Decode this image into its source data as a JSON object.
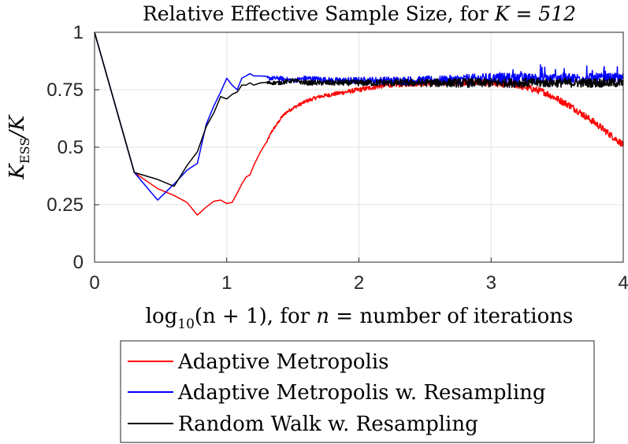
{
  "chart_data": {
    "type": "line",
    "title_prefix": "Relative Effective Sample Size, for ",
    "title_math": "K = 512",
    "xlabel_prefix": "log",
    "xlabel_sub": "10",
    "xlabel_mid": "(n + 1), for ",
    "xlabel_n": "n",
    "xlabel_suffix": " = number of iterations",
    "ylabel_main": "K",
    "ylabel_sub": "ESS",
    "ylabel_rest": "/K",
    "xlim": [
      0,
      4
    ],
    "ylim": [
      0,
      1
    ],
    "xticks": [
      0,
      1,
      2,
      3,
      4
    ],
    "xtick_labels": [
      "0",
      "1",
      "2",
      "3",
      "4"
    ],
    "yticks": [
      0,
      0.25,
      0.5,
      0.75,
      1
    ],
    "ytick_labels": [
      "0",
      "0.25",
      "0.5",
      "0.75",
      "1"
    ],
    "grid": true,
    "legend_position": "below",
    "series": [
      {
        "name": "Adaptive Metropolis",
        "color": "#ff0000",
        "x": [
          0,
          0.301,
          0.477,
          0.602,
          0.699,
          0.778,
          0.845,
          0.903,
          0.954,
          1.0,
          1.041,
          1.079,
          1.114,
          1.146,
          1.176,
          1.204,
          1.255,
          1.301,
          1.342,
          1.38,
          1.415,
          1.447,
          1.5,
          1.6,
          1.7,
          1.8,
          1.9,
          2.0,
          2.2,
          2.5,
          2.8,
          3.0,
          3.2,
          3.4,
          3.6,
          3.8,
          4.0
        ],
        "y": [
          1.0,
          0.39,
          0.32,
          0.29,
          0.26,
          0.205,
          0.24,
          0.265,
          0.27,
          0.255,
          0.26,
          0.3,
          0.34,
          0.37,
          0.38,
          0.42,
          0.48,
          0.52,
          0.57,
          0.6,
          0.63,
          0.65,
          0.67,
          0.7,
          0.72,
          0.73,
          0.74,
          0.75,
          0.77,
          0.78,
          0.785,
          0.78,
          0.77,
          0.74,
          0.68,
          0.6,
          0.51
        ],
        "noise": 0.015
      },
      {
        "name": "Adaptive Metropolis w. Resampling",
        "color": "#0000ff",
        "x": [
          0,
          0.301,
          0.477,
          0.602,
          0.699,
          0.778,
          0.845,
          0.903,
          0.954,
          1.0,
          1.041,
          1.079,
          1.114,
          1.146,
          1.176,
          1.204,
          1.255,
          1.301,
          1.4,
          1.5,
          1.6,
          1.8,
          2.0,
          2.3,
          2.6,
          3.0,
          3.3,
          3.6,
          4.0
        ],
        "y": [
          1.0,
          0.39,
          0.27,
          0.34,
          0.4,
          0.43,
          0.6,
          0.68,
          0.74,
          0.8,
          0.77,
          0.75,
          0.8,
          0.81,
          0.82,
          0.81,
          0.81,
          0.8,
          0.8,
          0.79,
          0.8,
          0.79,
          0.79,
          0.79,
          0.79,
          0.8,
          0.8,
          0.8,
          0.8
        ],
        "noise": 0.022
      },
      {
        "name": "Random Walk w. Resampling",
        "color": "#000000",
        "x": [
          0,
          0.301,
          0.477,
          0.602,
          0.699,
          0.778,
          0.845,
          0.903,
          0.954,
          1.0,
          1.041,
          1.079,
          1.114,
          1.146,
          1.176,
          1.204,
          1.255,
          1.301,
          1.4,
          1.5,
          1.6,
          1.8,
          2.0,
          2.3,
          2.6,
          3.0,
          3.3,
          3.6,
          4.0
        ],
        "y": [
          1.0,
          0.39,
          0.36,
          0.33,
          0.42,
          0.48,
          0.59,
          0.65,
          0.72,
          0.71,
          0.73,
          0.74,
          0.77,
          0.77,
          0.78,
          0.77,
          0.78,
          0.78,
          0.78,
          0.79,
          0.78,
          0.78,
          0.78,
          0.78,
          0.78,
          0.78,
          0.78,
          0.78,
          0.78
        ],
        "noise": 0.02
      }
    ]
  }
}
